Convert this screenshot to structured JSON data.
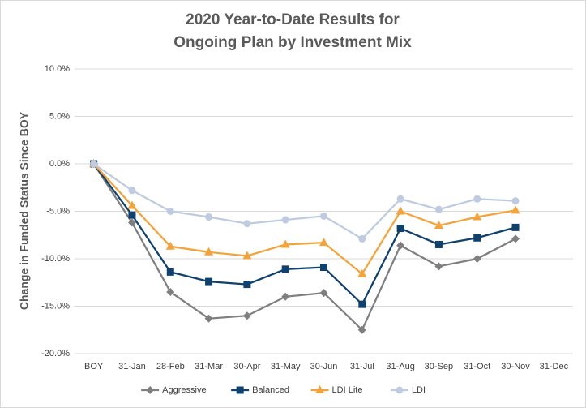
{
  "chart_data": {
    "type": "line",
    "title": [
      "2020 Year-to-Date Results for",
      "Ongoing Plan by Investment Mix"
    ],
    "y_label": "Change in Funded Status Since BOY",
    "categories": [
      "BOY",
      "31-Jan",
      "28-Feb",
      "31-Mar",
      "30-Apr",
      "31-May",
      "30-Jun",
      "31-Jul",
      "31-Aug",
      "30-Sep",
      "31-Oct",
      "30-Nov",
      "31-Dec"
    ],
    "series": [
      {
        "name": "Aggressive",
        "color": "#7f7f7f",
        "marker": "diamond",
        "values": [
          0,
          -6.2,
          -13.5,
          -16.3,
          -16.0,
          -14.0,
          -13.6,
          -17.5,
          -8.6,
          -10.8,
          -10.0,
          -7.9,
          null
        ]
      },
      {
        "name": "Balanced",
        "color": "#0e416e",
        "marker": "square",
        "values": [
          0,
          -5.4,
          -11.4,
          -12.4,
          -12.7,
          -11.1,
          -10.9,
          -14.8,
          -6.8,
          -8.5,
          -7.8,
          -6.7,
          null
        ]
      },
      {
        "name": "LDI Lite",
        "color": "#f4a23a",
        "marker": "triangle",
        "values": [
          0,
          -4.4,
          -8.7,
          -9.3,
          -9.7,
          -8.5,
          -8.3,
          -11.6,
          -5.0,
          -6.5,
          -5.6,
          -4.9,
          null
        ]
      },
      {
        "name": "LDI",
        "color": "#bfcbe0",
        "marker": "circle",
        "values": [
          0,
          -2.8,
          -5.0,
          -5.6,
          -6.3,
          -5.9,
          -5.5,
          -7.9,
          -3.7,
          -4.8,
          -3.7,
          -3.9,
          null
        ]
      }
    ],
    "ylim": [
      -20,
      10
    ],
    "yticks": [
      {
        "value": -20,
        "label": "-20.0%"
      },
      {
        "value": -15,
        "label": "-15.0%"
      },
      {
        "value": -10,
        "label": "-10.0%"
      },
      {
        "value": -5,
        "label": "-5.0%"
      },
      {
        "value": 0,
        "label": "0.0%"
      },
      {
        "value": 5,
        "label": "5.0%"
      },
      {
        "value": 10,
        "label": "10.0%"
      }
    ],
    "grid": true,
    "legend": "bottom"
  }
}
